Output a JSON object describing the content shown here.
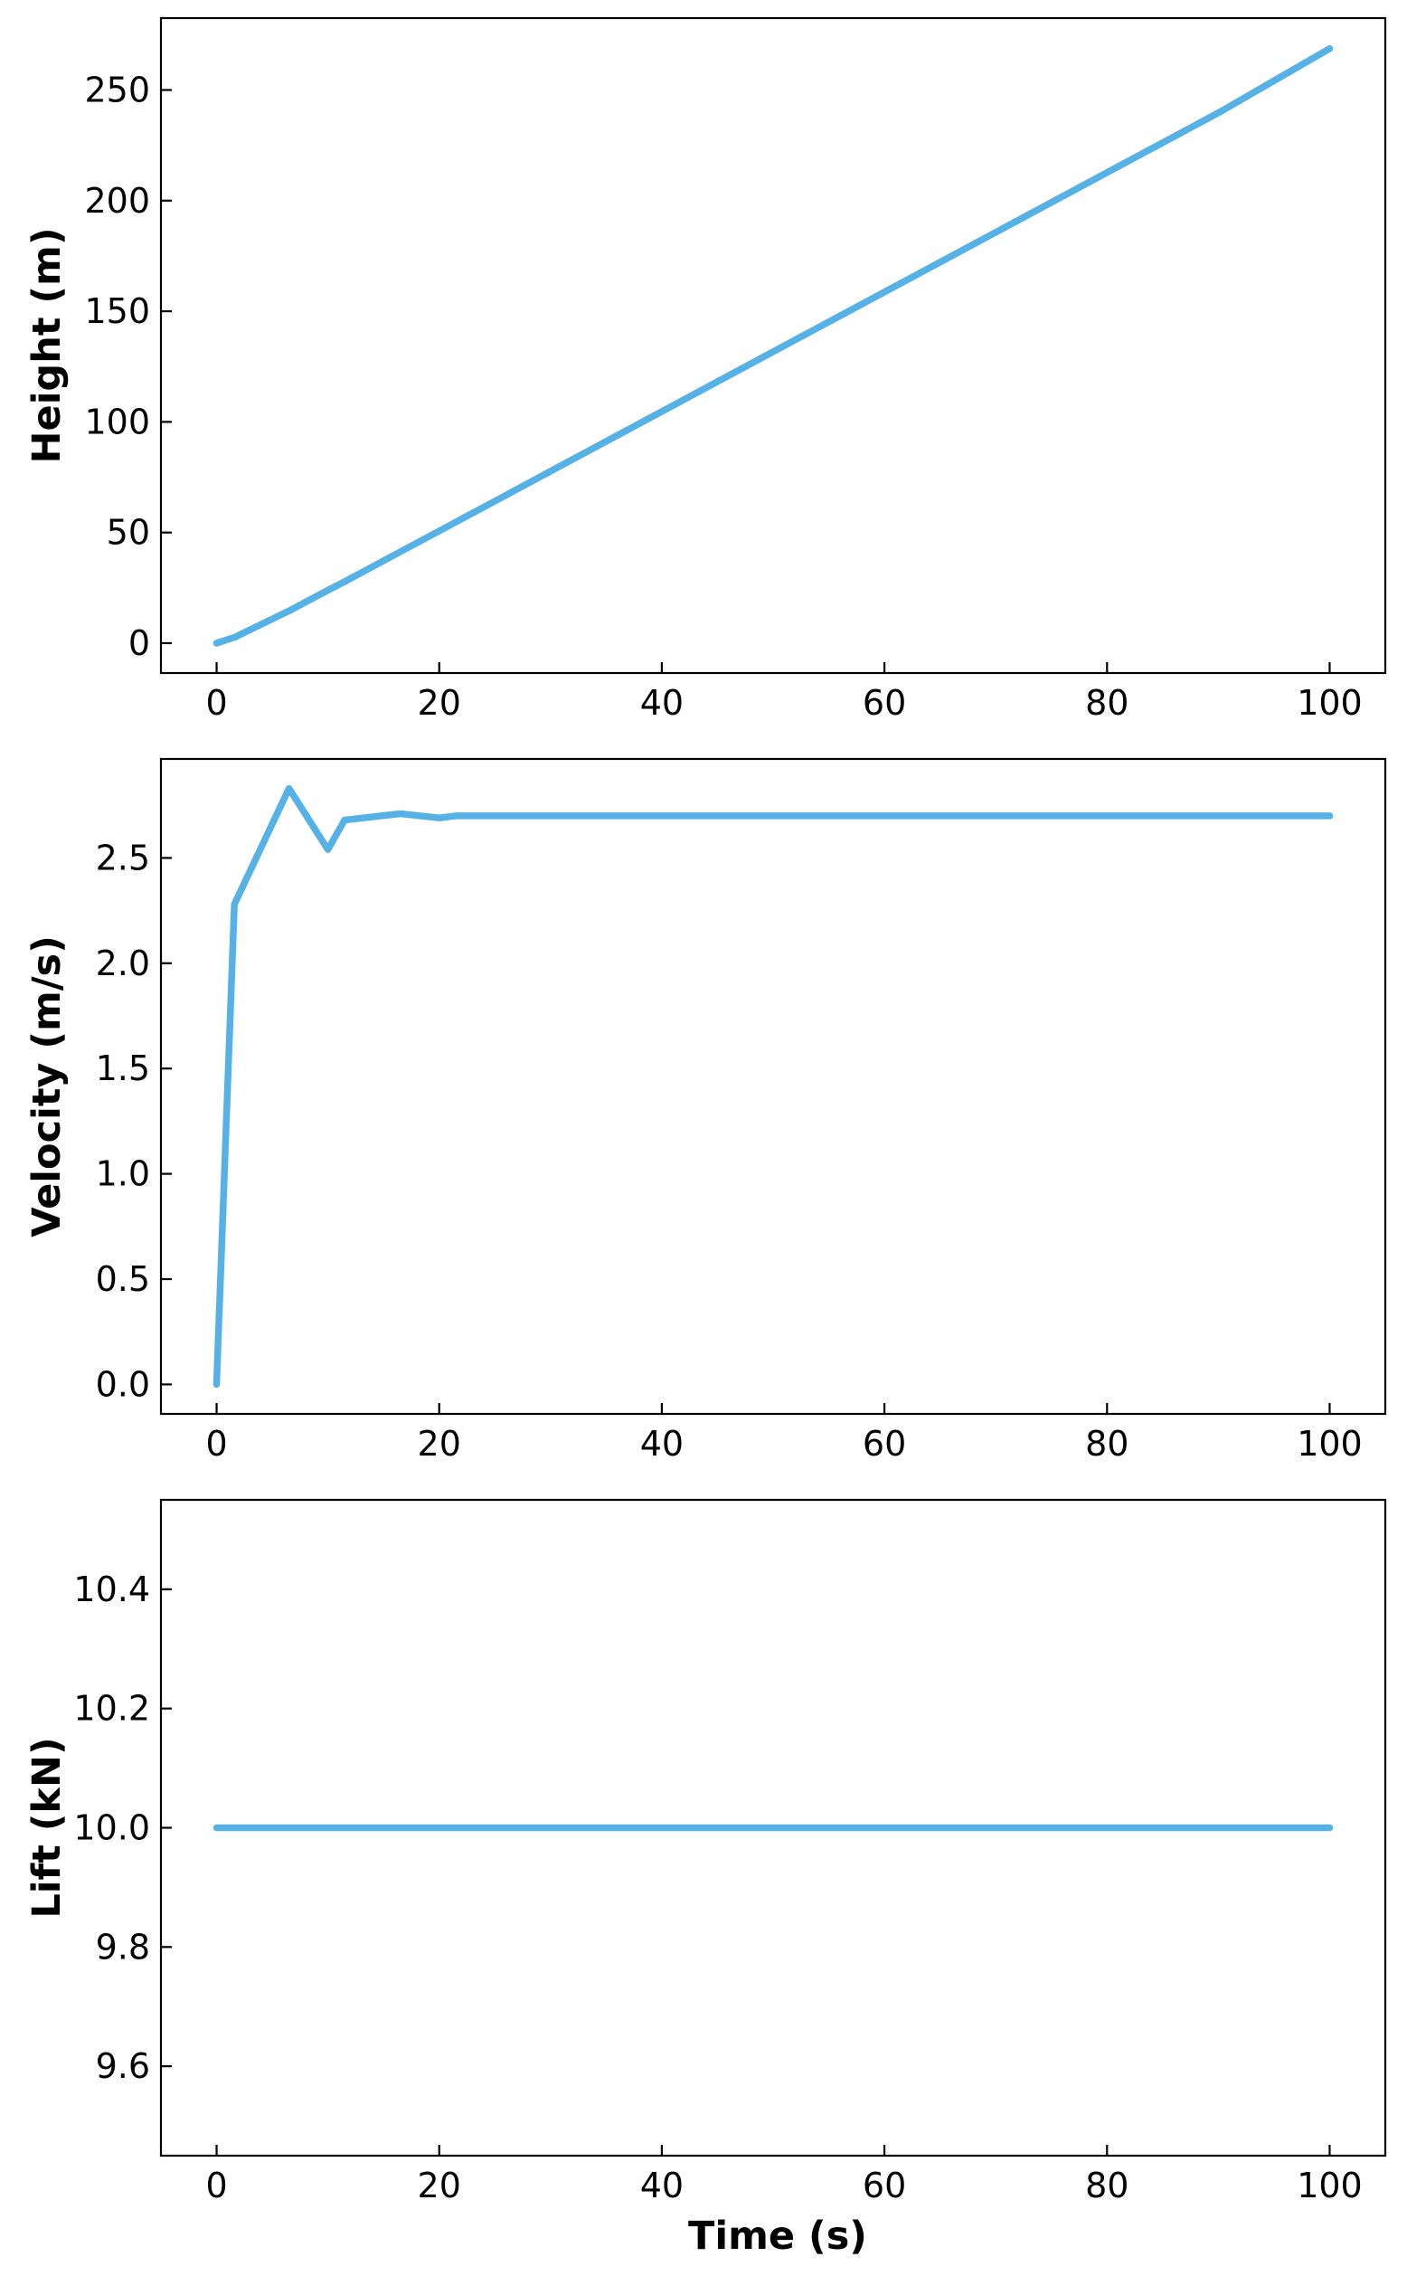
{
  "figure": {
    "xlabel": "Time (s)"
  },
  "colors": {
    "line": "#56b1e6",
    "axes": "#000000",
    "background": "#ffffff"
  },
  "chart_data": [
    {
      "type": "line",
      "title": "",
      "xlabel": "",
      "ylabel": "Height (m)",
      "xlim": [
        -5,
        105
      ],
      "ylim": [
        -13.5,
        282.5
      ],
      "xticks": [
        0,
        20,
        40,
        60,
        80,
        100
      ],
      "xtick_labels": [
        "0",
        "20",
        "40",
        "60",
        "80",
        "100"
      ],
      "yticks": [
        0,
        50,
        100,
        150,
        200,
        250
      ],
      "ytick_labels": [
        "0",
        "50",
        "100",
        "150",
        "200",
        "250"
      ],
      "grid": false,
      "series": [
        {
          "x": [
            0,
            1.6,
            6.5,
            10,
            11.5,
            16.5,
            20,
            25,
            30,
            40,
            50,
            60,
            70,
            80,
            90,
            100
          ],
          "values": [
            0,
            2.6,
            14.6,
            23.9,
            27.8,
            41.3,
            50.7,
            64.2,
            77.7,
            104.7,
            131.7,
            158.7,
            185.7,
            212.7,
            239.7,
            268.7
          ]
        }
      ]
    },
    {
      "type": "line",
      "title": "",
      "xlabel": "",
      "ylabel": "Velocity (m/s)",
      "xlim": [
        -5,
        105
      ],
      "ylim": [
        -0.14,
        2.97
      ],
      "xticks": [
        0,
        20,
        40,
        60,
        80,
        100
      ],
      "xtick_labels": [
        "0",
        "20",
        "40",
        "60",
        "80",
        "100"
      ],
      "yticks": [
        0.0,
        0.5,
        1.0,
        1.5,
        2.0,
        2.5
      ],
      "ytick_labels": [
        "0.0",
        "0.5",
        "1.0",
        "1.5",
        "2.0",
        "2.5"
      ],
      "grid": false,
      "series": [
        {
          "x": [
            0,
            1.6,
            6.5,
            10,
            11.5,
            16.5,
            20,
            21.5,
            25,
            30,
            40,
            50,
            60,
            70,
            80,
            90,
            100
          ],
          "values": [
            0.0,
            2.28,
            2.83,
            2.54,
            2.68,
            2.71,
            2.69,
            2.7,
            2.7,
            2.7,
            2.7,
            2.7,
            2.7,
            2.7,
            2.7,
            2.7,
            2.7
          ]
        }
      ]
    },
    {
      "type": "line",
      "title": "",
      "xlabel": "Time (s)",
      "ylabel": "Lift (kN)",
      "xlim": [
        -5,
        105
      ],
      "ylim": [
        9.45,
        10.55
      ],
      "xticks": [
        0,
        20,
        40,
        60,
        80,
        100
      ],
      "xtick_labels": [
        "0",
        "20",
        "40",
        "60",
        "80",
        "100"
      ],
      "yticks": [
        9.6,
        9.8,
        10.0,
        10.2,
        10.4
      ],
      "ytick_labels": [
        "9.6",
        "9.8",
        "10.0",
        "10.2",
        "10.4"
      ],
      "grid": false,
      "series": [
        {
          "x": [
            0,
            20,
            40,
            60,
            80,
            100
          ],
          "values": [
            10.0,
            10.0,
            10.0,
            10.0,
            10.0,
            10.0
          ]
        }
      ]
    }
  ]
}
